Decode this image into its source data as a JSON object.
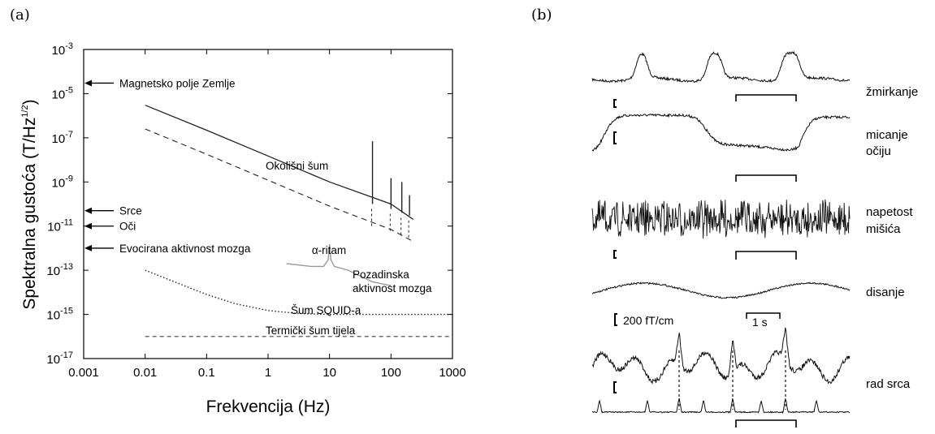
{
  "panels": {
    "a": "(a)",
    "b": "(b)"
  },
  "chart_data": [
    {
      "type": "line",
      "title": "",
      "xlabel": "Frekvencija (Hz)",
      "ylabel_main": "Spektralna gustoća (T/Hz",
      "ylabel_sup": "1/2",
      "ylabel_close": ")",
      "xscale": "log",
      "yscale": "log",
      "xlim": [
        0.001,
        1000
      ],
      "ylim": [
        1e-17,
        0.001
      ],
      "x_ticks": [
        "0.001",
        "0.01",
        "0.1",
        "1",
        "10",
        "100",
        "1000"
      ],
      "y_ticks": [
        {
          "base": "10",
          "exp": "-3"
        },
        {
          "base": "10",
          "exp": "-5"
        },
        {
          "base": "10",
          "exp": "-7"
        },
        {
          "base": "10",
          "exp": "-9"
        },
        {
          "base": "10",
          "exp": "-11"
        },
        {
          "base": "10",
          "exp": "-13"
        },
        {
          "base": "10",
          "exp": "-15"
        },
        {
          "base": "10",
          "exp": "-17"
        }
      ],
      "reference_levels": [
        {
          "label": "Magnetsko polje Zemlje",
          "y": 3e-05
        },
        {
          "label": "Srce",
          "y": 5e-11
        },
        {
          "label": "Oči",
          "y": 1e-11
        },
        {
          "label": "Evocirana aktivnost mozga",
          "y": 1e-12
        }
      ],
      "series": [
        {
          "key": "ambient",
          "style": "solid",
          "x": [
            0.01,
            0.1,
            1,
            10,
            100,
            230
          ],
          "y": [
            3e-06,
            2.2e-07,
            1.5e-08,
            1e-09,
            1e-10,
            2e-11
          ]
        },
        {
          "key": "shielded",
          "style": "dashed",
          "x": [
            0.01,
            0.1,
            1,
            10,
            100,
            230
          ],
          "y": [
            2.5e-07,
            1.8e-08,
            1.2e-09,
            8e-11,
            7e-12,
            2e-12
          ]
        },
        {
          "key": "squid",
          "style": "dotted",
          "x": [
            0.01,
            0.03,
            0.1,
            0.3,
            1,
            3,
            10,
            30,
            100,
            1000
          ],
          "y": [
            1e-13,
            3e-14,
            8e-15,
            3e-15,
            1.5e-15,
            1.1e-15,
            1e-15,
            1e-15,
            1e-15,
            1e-15
          ]
        },
        {
          "key": "thermal",
          "style": "dashed",
          "x": [
            0.01,
            1000
          ],
          "y": [
            1e-16,
            1e-16
          ]
        },
        {
          "key": "brain",
          "style": "gray",
          "x": [
            2,
            5,
            8,
            9.5,
            10,
            10.5,
            12,
            20,
            50,
            100
          ],
          "y": [
            2e-13,
            1.5e-13,
            1.5e-13,
            3e-13,
            1.5e-12,
            3e-13,
            1.5e-13,
            1e-13,
            3e-14,
            2e-14
          ]
        }
      ],
      "spikes": [
        {
          "x": 50,
          "from": 1e-10,
          "to": 7e-08
        },
        {
          "x": 100,
          "from": 6e-11,
          "to": 1.5e-09
        },
        {
          "x": 150,
          "from": 4e-11,
          "to": 1e-09
        },
        {
          "x": 200,
          "from": 3e-11,
          "to": 2.5e-10
        }
      ],
      "annotations": {
        "ambient": "Okolišni šum",
        "alpha": "α-ritam",
        "brain_1": "Pozadinska",
        "brain_2": "aktivnost mozga",
        "squid": "Šum SQUID-a",
        "thermal": "Termički šum tijela"
      }
    },
    {
      "type": "line",
      "title": "",
      "traces": [
        {
          "label_1": "žmirkanje",
          "label_2": ""
        },
        {
          "label_1": "micanje",
          "label_2": "očiju"
        },
        {
          "label_1": "napetost",
          "label_2": "mišića"
        },
        {
          "label_1": "disanje",
          "label_2": ""
        },
        {
          "label_1": "rad srca",
          "label_2": ""
        }
      ],
      "amplitude_scale": "200 fT/cm",
      "time_scale": "1 s"
    }
  ]
}
